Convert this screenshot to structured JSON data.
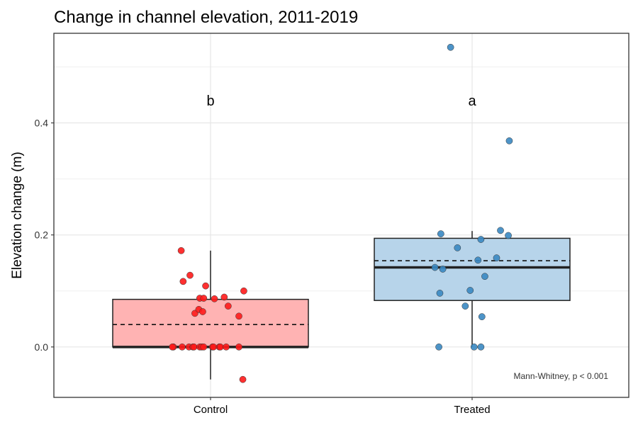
{
  "chart_data": {
    "type": "box",
    "title": "Change in channel elevation, 2011-2019",
    "xlabel": "",
    "ylabel": "Elevation change (m)",
    "ylim": [
      -0.09,
      0.56
    ],
    "yticks": [
      0.0,
      0.2,
      0.4
    ],
    "ytick_labels": [
      "0.0",
      "0.2",
      "0.4"
    ],
    "grid": true,
    "categories": [
      "Control",
      "Treated"
    ],
    "groups": [
      {
        "name": "Control",
        "letter": "b",
        "fill": "#ffb3b3",
        "point_color": "#ff1a1a",
        "q1": 0.0,
        "median": 0.0,
        "q3": 0.085,
        "mean": 0.04,
        "whisker_low": -0.058,
        "whisker_high": 0.172,
        "points": [
          {
            "j": -0.38,
            "y": 0.0
          },
          {
            "j": -0.39,
            "y": 0.0
          },
          {
            "j": -0.29,
            "y": 0.0
          },
          {
            "j": -0.22,
            "y": 0.0
          },
          {
            "j": -0.18,
            "y": 0.0
          },
          {
            "j": -0.17,
            "y": 0.0
          },
          {
            "j": -0.11,
            "y": 0.0
          },
          {
            "j": -0.09,
            "y": 0.0
          },
          {
            "j": -0.07,
            "y": 0.0
          },
          {
            "j": 0.02,
            "y": 0.0
          },
          {
            "j": 0.03,
            "y": 0.0
          },
          {
            "j": 0.09,
            "y": 0.0
          },
          {
            "j": 0.1,
            "y": 0.0
          },
          {
            "j": 0.16,
            "y": 0.0
          },
          {
            "j": 0.29,
            "y": 0.0
          },
          {
            "j": -0.3,
            "y": 0.172
          },
          {
            "j": -0.28,
            "y": 0.117
          },
          {
            "j": -0.21,
            "y": 0.128
          },
          {
            "j": -0.16,
            "y": 0.06
          },
          {
            "j": -0.12,
            "y": 0.067
          },
          {
            "j": -0.11,
            "y": 0.087
          },
          {
            "j": -0.08,
            "y": 0.063
          },
          {
            "j": -0.07,
            "y": 0.087
          },
          {
            "j": -0.05,
            "y": 0.109
          },
          {
            "j": 0.04,
            "y": 0.086
          },
          {
            "j": 0.14,
            "y": 0.089
          },
          {
            "j": 0.18,
            "y": 0.073
          },
          {
            "j": 0.29,
            "y": 0.055
          },
          {
            "j": 0.34,
            "y": 0.1
          },
          {
            "j": 0.33,
            "y": -0.058
          }
        ]
      },
      {
        "name": "Treated",
        "letter": "a",
        "fill": "#b7d4ea",
        "point_color": "#3a88c2",
        "q1": 0.083,
        "median": 0.142,
        "q3": 0.194,
        "mean": 0.154,
        "whisker_low": 0.0,
        "whisker_high": 0.207,
        "points": [
          {
            "j": -0.22,
            "y": 0.535
          },
          {
            "j": -0.38,
            "y": 0.142
          },
          {
            "j": -0.32,
            "y": 0.202
          },
          {
            "j": -0.3,
            "y": 0.139
          },
          {
            "j": -0.33,
            "y": 0.096
          },
          {
            "j": -0.34,
            "y": 0.0
          },
          {
            "j": -0.15,
            "y": 0.177
          },
          {
            "j": -0.07,
            "y": 0.073
          },
          {
            "j": -0.02,
            "y": 0.101
          },
          {
            "j": 0.02,
            "y": 0.0
          },
          {
            "j": 0.06,
            "y": 0.155
          },
          {
            "j": 0.09,
            "y": 0.192
          },
          {
            "j": 0.1,
            "y": 0.054
          },
          {
            "j": 0.09,
            "y": 0.0
          },
          {
            "j": 0.13,
            "y": 0.126
          },
          {
            "j": 0.25,
            "y": 0.159
          },
          {
            "j": 0.29,
            "y": 0.208
          },
          {
            "j": 0.37,
            "y": 0.199
          },
          {
            "j": 0.38,
            "y": 0.368
          }
        ]
      }
    ],
    "annotation": "Mann-Whitney, p < 0.001"
  }
}
